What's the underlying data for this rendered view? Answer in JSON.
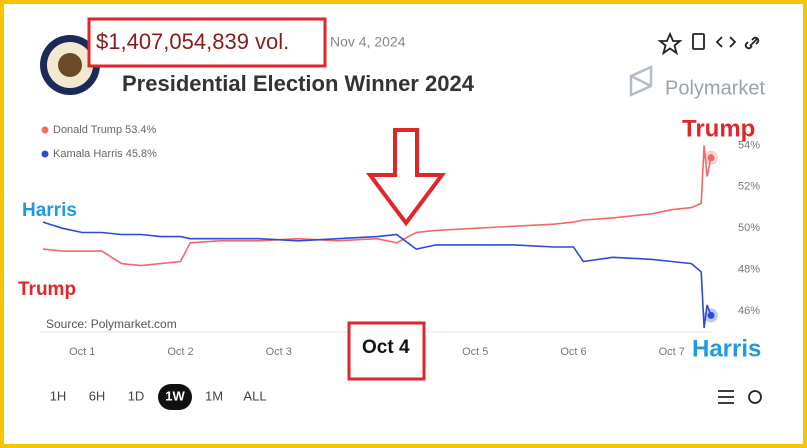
{
  "chart_data": {
    "type": "line",
    "volume": "$1,407,054,839  vol.",
    "date": "Nov 4, 2024",
    "title": "Presidential Election Winner 2024",
    "brand": "Polymarket",
    "source": "Source: Polymarket.com",
    "x": [
      0.6,
      0.8,
      1.0,
      1.2,
      1.4,
      1.6,
      1.8,
      2.0,
      2.1,
      2.4,
      2.8,
      3.2,
      3.6,
      4.0,
      4.2,
      4.4,
      4.6,
      5.0,
      5.4,
      5.8,
      6.0,
      6.1,
      6.4,
      6.8,
      7.0,
      7.2,
      7.3,
      7.33,
      7.36,
      7.4
    ],
    "series": [
      {
        "name": "Donald Trump 53.4%",
        "color": "#f06a66",
        "values": [
          49.0,
          48.9,
          48.9,
          48.9,
          48.3,
          48.2,
          48.3,
          48.4,
          49.3,
          49.4,
          49.4,
          49.5,
          49.4,
          49.5,
          49.3,
          49.8,
          49.9,
          50.0,
          50.1,
          50.2,
          50.3,
          50.4,
          50.5,
          50.7,
          50.9,
          51.0,
          51.2,
          54.0,
          52.5,
          53.4
        ]
      },
      {
        "name": "Kamala Harris 45.8%",
        "color": "#2b4bd9",
        "values": [
          50.3,
          50.0,
          49.8,
          49.8,
          49.7,
          49.7,
          49.6,
          49.6,
          49.5,
          49.5,
          49.5,
          49.4,
          49.5,
          49.6,
          49.7,
          49.0,
          49.2,
          49.2,
          49.2,
          49.1,
          49.1,
          48.4,
          48.6,
          48.5,
          48.4,
          48.3,
          47.9,
          45.2,
          46.3,
          45.8
        ]
      }
    ],
    "xlim": [
      0.57,
      7.41
    ],
    "xticks": [
      {
        "value": 1,
        "label": "Oct 1"
      },
      {
        "value": 2,
        "label": "Oct 2"
      },
      {
        "value": 3,
        "label": "Oct 3"
      },
      {
        "value": 5,
        "label": "Oct 5"
      },
      {
        "value": 6,
        "label": "Oct 6"
      },
      {
        "value": 7,
        "label": "Oct 7"
      }
    ],
    "ylim": [
      45,
      54.5
    ],
    "yticks": [
      {
        "value": 46,
        "label": "46%"
      },
      {
        "value": 48,
        "label": "48%"
      },
      {
        "value": 50,
        "label": "50%"
      },
      {
        "value": 52,
        "label": "52%"
      },
      {
        "value": 54,
        "label": "54%"
      }
    ],
    "annotations": [
      {
        "text": "Trump",
        "color": "#e0262b"
      },
      {
        "text": "Harris",
        "color": "#1e9be0"
      },
      {
        "text": "Trump",
        "color": "#e0262b"
      },
      {
        "text": "Harris",
        "color": "#1e9be0"
      },
      {
        "text": "Oct 4",
        "color": "#111111"
      }
    ],
    "ranges": [
      "1H",
      "6H",
      "1D",
      "1W",
      "1M",
      "ALL"
    ],
    "selected_range": "1W"
  }
}
